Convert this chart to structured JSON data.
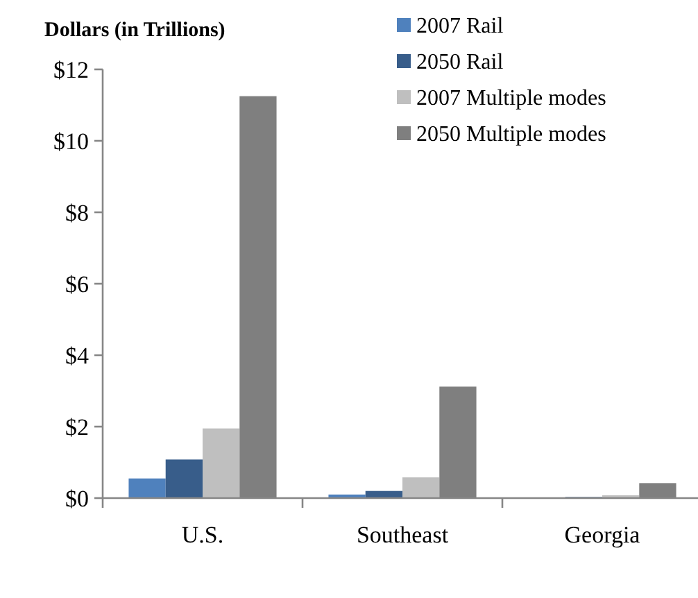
{
  "chart_data": {
    "type": "bar",
    "ylabel": "Dollars (in Trillions)",
    "categories": [
      "U.S.",
      "Southeast",
      "Georgia"
    ],
    "series": [
      {
        "name": "2007 Rail",
        "color": "#4f81bd",
        "values": [
          0.55,
          0.1,
          0.01
        ]
      },
      {
        "name": "2050 Rail",
        "color": "#385d8a",
        "values": [
          1.08,
          0.2,
          0.03
        ]
      },
      {
        "name": "2007 Multiple modes",
        "color": "#bfbfbf",
        "values": [
          1.95,
          0.58,
          0.08
        ]
      },
      {
        "name": "2050 Multiple modes",
        "color": "#7f7f7f",
        "values": [
          11.25,
          3.12,
          0.42
        ]
      }
    ],
    "ylim": [
      0,
      12
    ],
    "yticks": [
      {
        "value": 0,
        "label": "$0"
      },
      {
        "value": 2,
        "label": "$2"
      },
      {
        "value": 4,
        "label": "$4"
      },
      {
        "value": 6,
        "label": "$6"
      },
      {
        "value": 8,
        "label": "$8"
      },
      {
        "value": 10,
        "label": "$10"
      },
      {
        "value": 12,
        "label": "$12"
      }
    ],
    "grid": false,
    "legend": "top right"
  }
}
